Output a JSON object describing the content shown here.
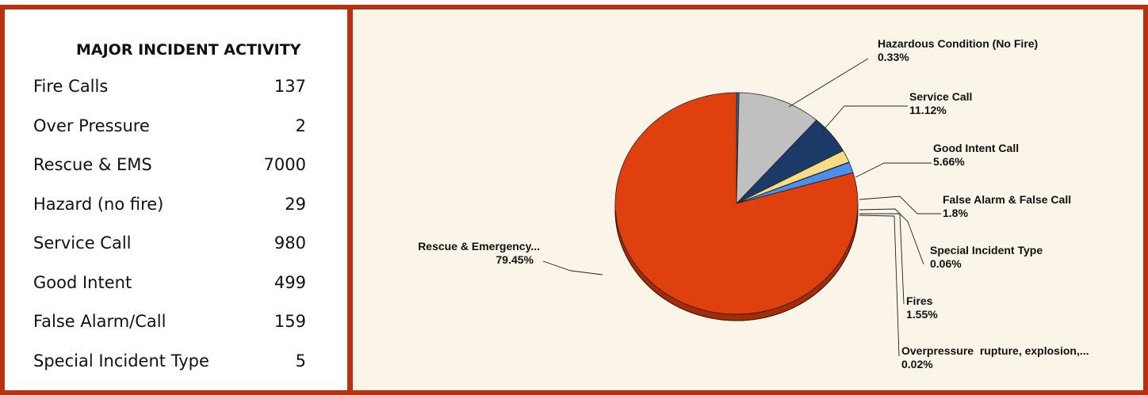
{
  "activity": {
    "title": "MAJOR INCIDENT ACTIVITY",
    "rows": [
      {
        "label": "Fire Calls",
        "value": "137"
      },
      {
        "label": "Over Pressure",
        "value": "2"
      },
      {
        "label": "Rescue & EMS",
        "value": "7000"
      },
      {
        "label": "Hazard (no fire)",
        "value": "29"
      },
      {
        "label": "Service Call",
        "value": "980"
      },
      {
        "label": "Good Intent",
        "value": "499"
      },
      {
        "label": "False Alarm/Call",
        "value": "159"
      },
      {
        "label": "Special Incident Type",
        "value": "5"
      }
    ]
  },
  "chart_data": {
    "type": "pie",
    "slices": [
      {
        "name": "Hazardous Condition (No Fire)",
        "pct_label": "0.33%",
        "value": 0.33,
        "color": "#2e5f9e"
      },
      {
        "name": "Service Call",
        "pct_label": "11.12%",
        "value": 11.12,
        "color": "#c0c0c0"
      },
      {
        "name": "Good Intent Call",
        "pct_label": "5.66%",
        "value": 5.66,
        "color": "#1c3a68"
      },
      {
        "name": "False Alarm & False Call",
        "pct_label": "1.8%",
        "value": 1.8,
        "color": "#f7dc85"
      },
      {
        "name": "Special Incident Type",
        "pct_label": "0.06%",
        "value": 0.06,
        "color": "#6b8fc4"
      },
      {
        "name": "Fires",
        "pct_label": "1.55%",
        "value": 1.55,
        "color": "#4b8ff0"
      },
      {
        "name": "Overpressure  rupture, explosion,...",
        "pct_label": "0.02%",
        "value": 0.02,
        "color": "#8a1b08"
      },
      {
        "name": "Rescue & Emergency...",
        "pct_label": "79.45%",
        "value": 79.45,
        "color": "#df400d"
      }
    ],
    "colors": {
      "panel_border": "#b83112",
      "panel_bg": "#fbf5e9",
      "side_shadow": "#a52c08"
    }
  }
}
